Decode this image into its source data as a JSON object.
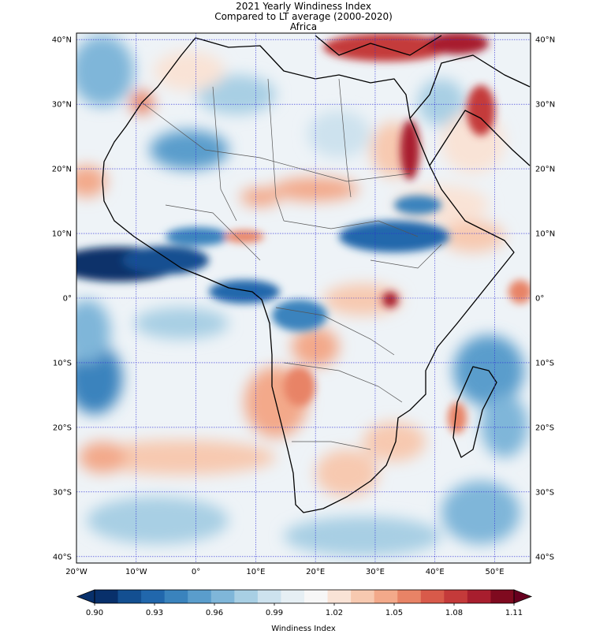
{
  "title": {
    "line1": "2021 Yearly Windiness Index",
    "line2": "Compared to LT average (2000-2020)",
    "line3": "Africa"
  },
  "map": {
    "region": "Africa",
    "lon_range": [
      -20,
      56
    ],
    "lat_range": [
      -41,
      41
    ],
    "lat_ticks": [
      {
        "value": 40,
        "label": "40°N"
      },
      {
        "value": 30,
        "label": "30°N"
      },
      {
        "value": 20,
        "label": "20°N"
      },
      {
        "value": 10,
        "label": "10°N"
      },
      {
        "value": 0,
        "label": "0°"
      },
      {
        "value": -10,
        "label": "10°S"
      },
      {
        "value": -20,
        "label": "20°S"
      },
      {
        "value": -30,
        "label": "30°S"
      },
      {
        "value": -40,
        "label": "40°S"
      }
    ],
    "lon_ticks": [
      {
        "value": -20,
        "label": "20°W"
      },
      {
        "value": -10,
        "label": "10°W"
      },
      {
        "value": 0,
        "label": "0°"
      },
      {
        "value": 10,
        "label": "10°E"
      },
      {
        "value": 20,
        "label": "20°E"
      },
      {
        "value": 30,
        "label": "30°E"
      },
      {
        "value": 40,
        "label": "40°E"
      },
      {
        "value": 50,
        "label": "50°E"
      }
    ],
    "gridline_color": "#2b2bd6"
  },
  "colorbar": {
    "label": "Windiness Index",
    "min": 0.9,
    "max": 1.11,
    "tick_labels": [
      "0.90",
      "0.93",
      "0.96",
      "0.99",
      "1.02",
      "1.05",
      "1.08",
      "1.11"
    ],
    "colors": [
      "#08306b",
      "#134f91",
      "#2167ac",
      "#3a83bd",
      "#5a9dcc",
      "#7fb6d9",
      "#a8cfe4",
      "#cde2ee",
      "#e6eff4",
      "#f7f7f7",
      "#f9e3d6",
      "#f7c9b0",
      "#f3a98a",
      "#e88366",
      "#d85a4a",
      "#c43a3a",
      "#a81e2e",
      "#7f0a1f"
    ],
    "extend_low_color": "#08306b",
    "extend_high_color": "#67001f"
  }
}
